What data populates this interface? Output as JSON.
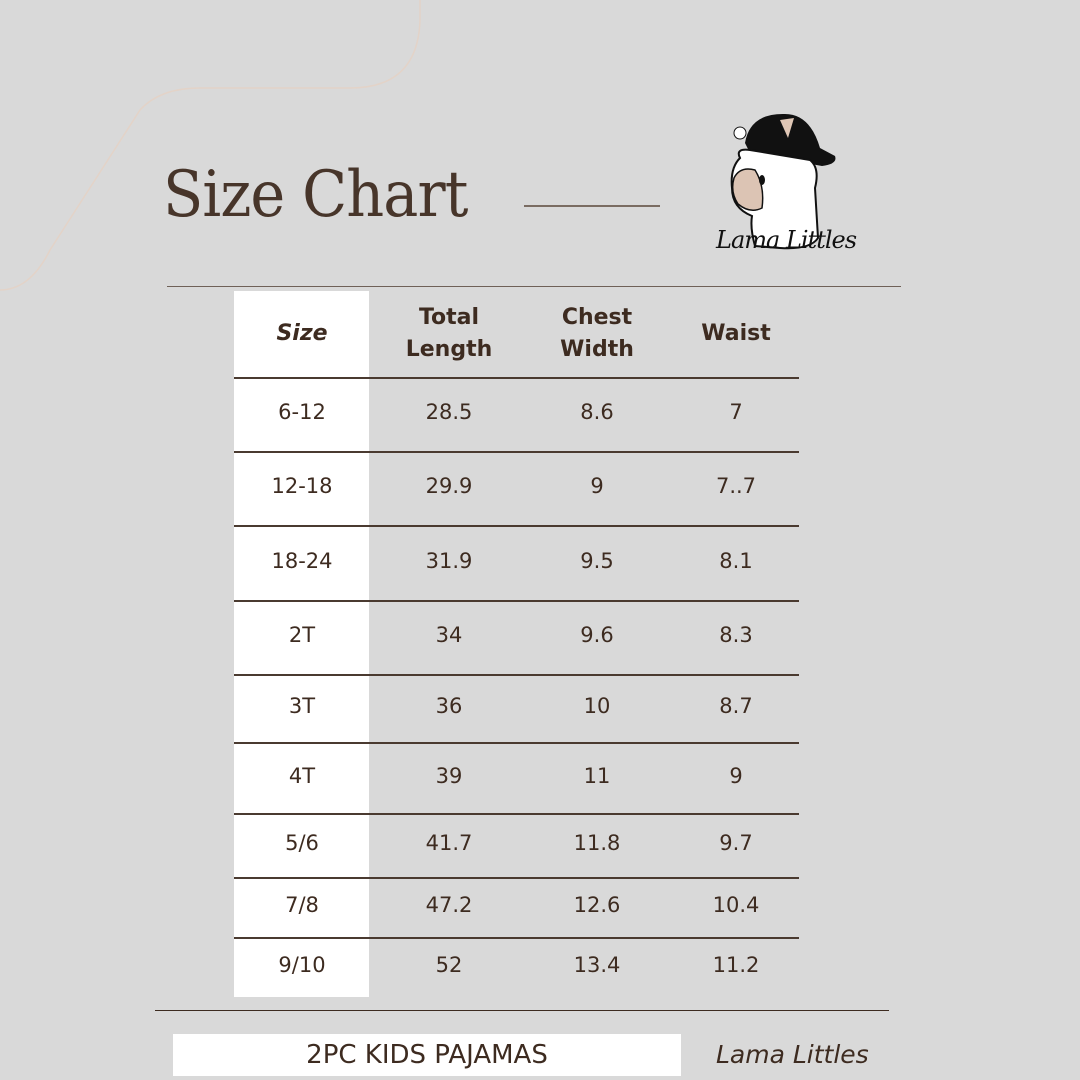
{
  "title": "Size Chart",
  "logo": {
    "text": "Lama Littles",
    "icon": "llama-with-cap-logo"
  },
  "table": {
    "headers": [
      "Size",
      "Total\nLength",
      "Chest\nWidth",
      "Waist"
    ],
    "rows": [
      [
        "6-12",
        "28.5",
        "8.6",
        "7"
      ],
      [
        "12-18",
        "29.9",
        "9",
        "7..7"
      ],
      [
        "18-24",
        "31.9",
        "9.5",
        "8.1"
      ],
      [
        "2T",
        "34",
        "9.6",
        "8.3"
      ],
      [
        "3T",
        "36",
        "10",
        "8.7"
      ],
      [
        "4T",
        "39",
        "11",
        "9"
      ],
      [
        "5/6",
        "41.7",
        "11.8",
        "9.7"
      ],
      [
        "7/8",
        "47.2",
        "12.6",
        "10.4"
      ],
      [
        "9/10",
        "52",
        "13.4",
        "11.2"
      ]
    ]
  },
  "footer": {
    "product": "2PC KIDS PAJAMAS",
    "brand": "Lama Littles"
  },
  "colors": {
    "background": "#d9d9d9",
    "text": "#3d2b20",
    "accent_line": "#e3d3c8"
  }
}
